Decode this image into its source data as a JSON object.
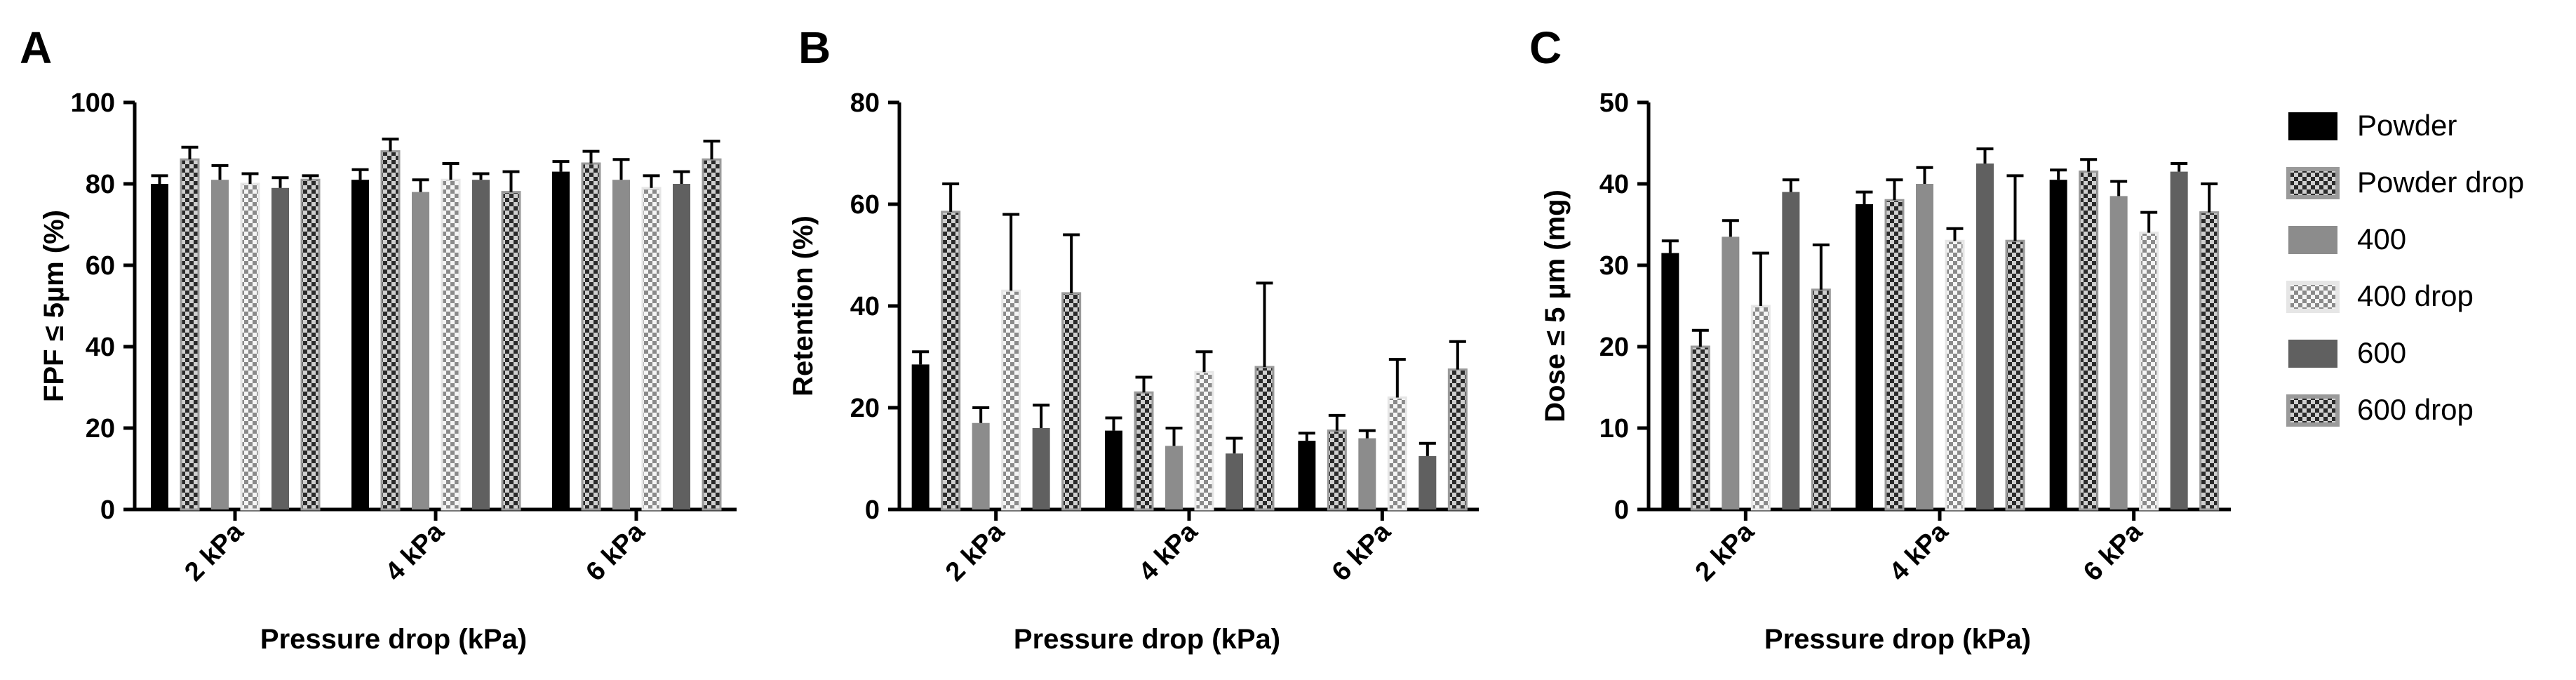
{
  "legend": [
    {
      "label": "Powder",
      "color": "#000000",
      "pattern": "solid"
    },
    {
      "label": "Powder drop",
      "color": "#9a9a9a",
      "pattern": "checker"
    },
    {
      "label": "400",
      "color": "#8c8c8c",
      "pattern": "solid"
    },
    {
      "label": "400 drop",
      "color": "#e6e6e6",
      "pattern": "checker"
    },
    {
      "label": "600",
      "color": "#606060",
      "pattern": "solid"
    },
    {
      "label": "600 drop",
      "color": "#9a9a9a",
      "pattern": "checker"
    }
  ],
  "chart_data": [
    {
      "type": "bar",
      "panel_label": "A",
      "ylabel": "FPF ≤ 5µm (%)",
      "xlabel": "Pressure drop (kPa)",
      "categories": [
        "2 kPa",
        "4 kPa",
        "6 kPa"
      ],
      "ylim": [
        0,
        100
      ],
      "yticks": [
        0,
        20,
        40,
        60,
        80,
        100
      ],
      "series": [
        {
          "name": "Powder",
          "values": [
            80,
            81,
            83
          ],
          "errors": [
            2,
            2.5,
            2.5
          ]
        },
        {
          "name": "Powder drop",
          "values": [
            86,
            88,
            85
          ],
          "errors": [
            3,
            3,
            3
          ]
        },
        {
          "name": "400",
          "values": [
            81,
            78,
            81
          ],
          "errors": [
            3.5,
            3,
            5
          ]
        },
        {
          "name": "400 drop",
          "values": [
            80,
            81,
            79
          ],
          "errors": [
            2.5,
            4,
            3
          ]
        },
        {
          "name": "600",
          "values": [
            79,
            81,
            80
          ],
          "errors": [
            2.5,
            1.5,
            3
          ]
        },
        {
          "name": "600 drop",
          "values": [
            81,
            78,
            86
          ],
          "errors": [
            1,
            5,
            4.5
          ]
        }
      ]
    },
    {
      "type": "bar",
      "panel_label": "B",
      "ylabel": "Retention (%)",
      "xlabel": "Pressure drop (kPa)",
      "categories": [
        "2 kPa",
        "4 kPa",
        "6 kPa"
      ],
      "ylim": [
        0,
        80
      ],
      "yticks": [
        0,
        20,
        40,
        60,
        80
      ],
      "series": [
        {
          "name": "Powder",
          "values": [
            28.5,
            15.5,
            13.5
          ],
          "errors": [
            2.5,
            2.5,
            1.5
          ]
        },
        {
          "name": "Powder drop",
          "values": [
            58.5,
            23,
            15.5
          ],
          "errors": [
            5.5,
            3,
            3
          ]
        },
        {
          "name": "400",
          "values": [
            17,
            12.5,
            14
          ],
          "errors": [
            3,
            3.5,
            1.5
          ]
        },
        {
          "name": "400 drop",
          "values": [
            43,
            27,
            22
          ],
          "errors": [
            15,
            4,
            7.5
          ]
        },
        {
          "name": "600",
          "values": [
            16,
            11,
            10.5
          ],
          "errors": [
            4.5,
            3,
            2.5
          ]
        },
        {
          "name": "600 drop",
          "values": [
            42.5,
            28,
            27.5
          ],
          "errors": [
            11.5,
            16.5,
            5.5
          ]
        }
      ]
    },
    {
      "type": "bar",
      "panel_label": "C",
      "ylabel": "Dose ≤ 5 µm (mg)",
      "xlabel": "Pressure drop (kPa)",
      "categories": [
        "2 kPa",
        "4 kPa",
        "6 kPa"
      ],
      "ylim": [
        0,
        50
      ],
      "yticks": [
        0,
        10,
        20,
        30,
        40,
        50
      ],
      "series": [
        {
          "name": "Powder",
          "values": [
            31.5,
            37.5,
            40.5
          ],
          "errors": [
            1.5,
            1.5,
            1.2
          ]
        },
        {
          "name": "Powder drop",
          "values": [
            20,
            38,
            41.5
          ],
          "errors": [
            2,
            2.5,
            1.5
          ]
        },
        {
          "name": "400",
          "values": [
            33.5,
            40,
            38.5
          ],
          "errors": [
            2,
            2,
            1.8
          ]
        },
        {
          "name": "400 drop",
          "values": [
            25,
            33,
            34
          ],
          "errors": [
            6.5,
            1.5,
            2.5
          ]
        },
        {
          "name": "600",
          "values": [
            39,
            42.5,
            41.5
          ],
          "errors": [
            1.5,
            1.8,
            1
          ]
        },
        {
          "name": "600 drop",
          "values": [
            27,
            33,
            36.5
          ],
          "errors": [
            5.5,
            8,
            3.5
          ]
        }
      ]
    }
  ]
}
